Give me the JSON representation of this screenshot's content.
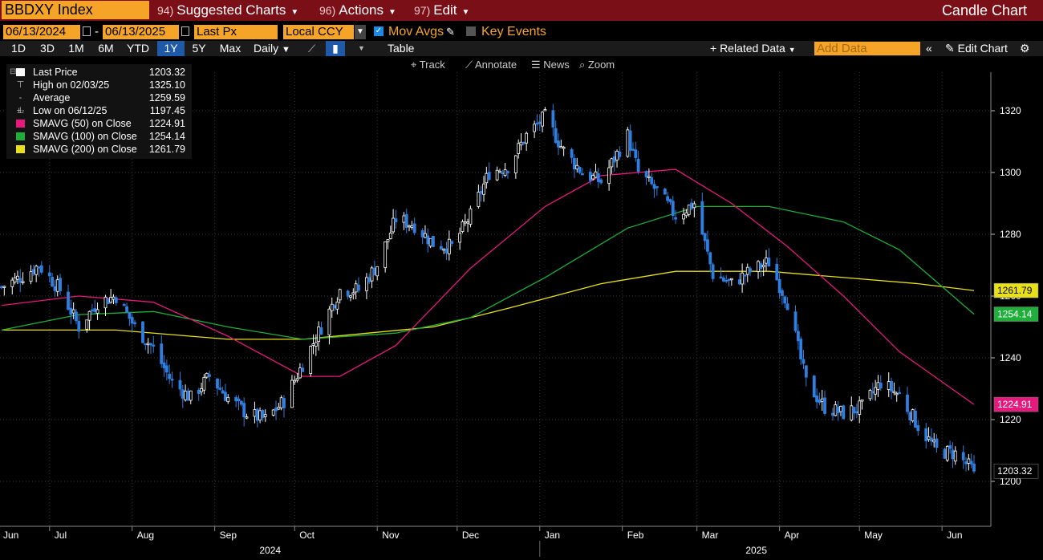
{
  "header": {
    "ticker": "BBDXY Index",
    "suggested_num": "94)",
    "suggested_label": "Suggested Charts",
    "actions_num": "96)",
    "actions_label": "Actions",
    "edit_num": "97)",
    "edit_label": "Edit",
    "chart_kind": "Candle Chart"
  },
  "controls": {
    "start_date": "06/13/2024",
    "date_sep": "-",
    "end_date": "06/13/2025",
    "price_field": "Last Px",
    "currency": "Local CCY",
    "mov_avgs_label": "Mov Avgs",
    "key_events_label": "Key Events"
  },
  "periods": [
    "1D",
    "3D",
    "1M",
    "6M",
    "YTD",
    "1Y",
    "5Y",
    "Max"
  ],
  "selected_period": "1Y",
  "frequency": "Daily",
  "table_label": "Table",
  "related_data_label": "+ Related Data",
  "add_data_placeholder": "Add Data",
  "edit_chart_label": "Edit Chart",
  "tools": {
    "track": "Track",
    "annotate": "Annotate",
    "news": "News",
    "zoom": "Zoom"
  },
  "legend": {
    "last_price_label": "Last Price",
    "last_price_value": "1203.32",
    "high_label": "High on 02/03/25",
    "high_value": "1325.10",
    "average_label": "Average",
    "average_value": "1259.59",
    "low_label": "Low on 06/12/25",
    "low_value": "1197.45",
    "sma50_label": "SMAVG (50)  on Close",
    "sma50_value": "1224.91",
    "sma100_label": "SMAVG (100)  on Close",
    "sma100_value": "1254.14",
    "sma200_label": "SMAVG (200)  on Close",
    "sma200_value": "1261.79"
  },
  "colors": {
    "header_bg": "#7a0f17",
    "accent_orange": "#f6a427",
    "up_candle": "#ffffff",
    "down_candle": "#2f7fe0",
    "sma50": "#e6197d",
    "sma100": "#1fae3a",
    "sma200": "#e8e01a"
  },
  "chart_data": {
    "type": "candlestick",
    "title": "",
    "ylim": [
      1180,
      1334
    ],
    "y_ticks": [
      1200,
      1220,
      1240,
      1260,
      1280,
      1300,
      1320
    ],
    "grid": true,
    "legend_position": "top-left",
    "x_ticks": [
      "Jun",
      "Jul",
      "Aug",
      "Sep",
      "Oct",
      "Nov",
      "Dec",
      "Jan",
      "Feb",
      "Mar",
      "Apr",
      "May",
      "Jun"
    ],
    "year_labels": [
      "2024",
      "2025"
    ],
    "close_anchors": [
      [
        "06/13/24",
        1263
      ],
      [
        "06/20/24",
        1266
      ],
      [
        "06/27/24",
        1270
      ],
      [
        "07/05/24",
        1262
      ],
      [
        "07/12/24",
        1250
      ],
      [
        "07/19/24",
        1258
      ],
      [
        "07/26/24",
        1260
      ],
      [
        "08/02/24",
        1250
      ],
      [
        "08/09/24",
        1243
      ],
      [
        "08/16/24",
        1232
      ],
      [
        "08/23/24",
        1227
      ],
      [
        "08/30/24",
        1234
      ],
      [
        "09/06/24",
        1227
      ],
      [
        "09/13/24",
        1222
      ],
      [
        "09/20/24",
        1220
      ],
      [
        "09/27/24",
        1226
      ],
      [
        "10/04/24",
        1238
      ],
      [
        "10/11/24",
        1250
      ],
      [
        "10/18/24",
        1262
      ],
      [
        "10/25/24",
        1262
      ],
      [
        "11/01/24",
        1270
      ],
      [
        "11/08/24",
        1285
      ],
      [
        "11/15/24",
        1283
      ],
      [
        "11/22/24",
        1277
      ],
      [
        "11/29/24",
        1276
      ],
      [
        "12/06/24",
        1286
      ],
      [
        "12/13/24",
        1300
      ],
      [
        "12/20/24",
        1302
      ],
      [
        "12/27/24",
        1312
      ],
      [
        "01/03/25",
        1318
      ],
      [
        "01/10/25",
        1307
      ],
      [
        "01/17/25",
        1300
      ],
      [
        "01/24/25",
        1297
      ],
      [
        "02/03/25",
        1312
      ],
      [
        "02/07/25",
        1300
      ],
      [
        "02/14/25",
        1294
      ],
      [
        "02/21/25",
        1286
      ],
      [
        "02/28/25",
        1290
      ],
      [
        "03/07/25",
        1267
      ],
      [
        "03/14/25",
        1264
      ],
      [
        "03/21/25",
        1268
      ],
      [
        "03/28/25",
        1271
      ],
      [
        "04/04/25",
        1258
      ],
      [
        "04/11/25",
        1232
      ],
      [
        "04/18/25",
        1224
      ],
      [
        "04/25/25",
        1222
      ],
      [
        "05/02/25",
        1224
      ],
      [
        "05/09/25",
        1232
      ],
      [
        "05/16/25",
        1228
      ],
      [
        "05/23/25",
        1218
      ],
      [
        "05/30/25",
        1210
      ],
      [
        "06/06/25",
        1209
      ],
      [
        "06/13/25",
        1203.32
      ]
    ],
    "sma50": [
      [
        "06/13/24",
        1257
      ],
      [
        "07/12/24",
        1260
      ],
      [
        "08/09/24",
        1258
      ],
      [
        "09/06/24",
        1247
      ],
      [
        "10/04/24",
        1234
      ],
      [
        "10/18/24",
        1234
      ],
      [
        "11/08/24",
        1244
      ],
      [
        "12/06/24",
        1269
      ],
      [
        "01/03/25",
        1289
      ],
      [
        "01/24/25",
        1299
      ],
      [
        "02/21/25",
        1301
      ],
      [
        "03/14/25",
        1290
      ],
      [
        "04/04/25",
        1276
      ],
      [
        "04/25/25",
        1260
      ],
      [
        "05/16/25",
        1242
      ],
      [
        "06/13/25",
        1224.91
      ]
    ],
    "sma100": [
      [
        "06/13/24",
        1249
      ],
      [
        "07/12/24",
        1254
      ],
      [
        "08/09/24",
        1255
      ],
      [
        "09/06/24",
        1250
      ],
      [
        "10/04/24",
        1246
      ],
      [
        "11/08/24",
        1248
      ],
      [
        "12/06/24",
        1253
      ],
      [
        "01/03/25",
        1266
      ],
      [
        "02/03/25",
        1282
      ],
      [
        "03/01/25",
        1289
      ],
      [
        "03/28/25",
        1289
      ],
      [
        "04/25/25",
        1284
      ],
      [
        "05/16/25",
        1275
      ],
      [
        "06/13/25",
        1254.14
      ]
    ],
    "sma200": [
      [
        "06/13/24",
        1249
      ],
      [
        "07/26/24",
        1249
      ],
      [
        "09/06/24",
        1246
      ],
      [
        "10/04/24",
        1246
      ],
      [
        "11/22/24",
        1250
      ],
      [
        "12/20/24",
        1256
      ],
      [
        "01/24/25",
        1264
      ],
      [
        "02/21/25",
        1268
      ],
      [
        "03/28/25",
        1268
      ],
      [
        "04/25/25",
        1266
      ],
      [
        "05/23/25",
        1264
      ],
      [
        "06/13/25",
        1261.79
      ]
    ],
    "last_price": 1203.32,
    "high": 1325.1,
    "low": 1197.45,
    "average": 1259.59
  }
}
